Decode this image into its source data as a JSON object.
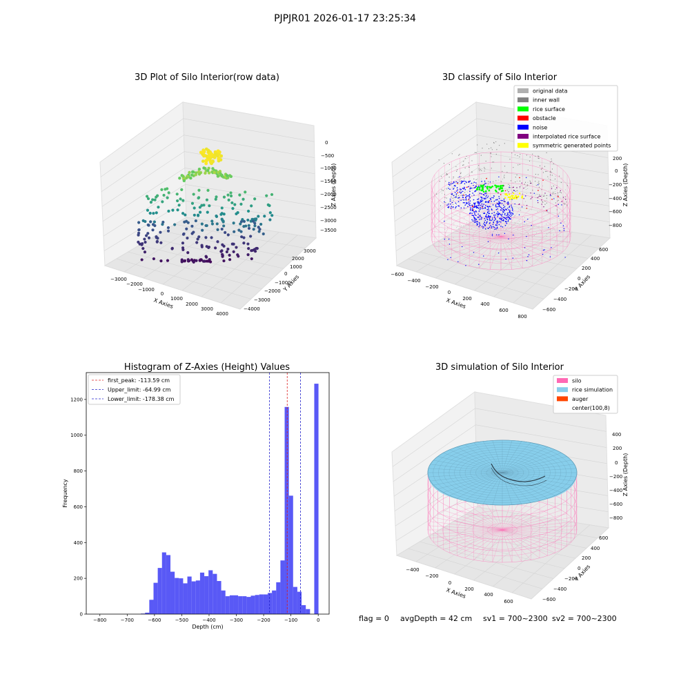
{
  "figure_title": "PJPJR01 2026-01-17 23:25:34",
  "status_line": {
    "flag": "flag = 0",
    "avg_depth": "avgDepth = 42 cm",
    "sv1": "sv1 = 700~2300",
    "sv2": "sv2 = 700~2300"
  },
  "colors": {
    "hist_bar": "#5050f5",
    "first_peak": "#dd2222",
    "limits": "#2222cc",
    "silo": "#ff69b4",
    "rice_simulation": "#87ceeb",
    "auger": "#ff4500",
    "original_data": "#b0b0b0",
    "inner_wall": "#808080",
    "rice_surface": "#00ff00",
    "obstacle": "#ff0000",
    "noise": "#0000ff",
    "interpolated_rice_surface": "#800080",
    "symmetric_generated_points": "#ffff00"
  },
  "chart_data": [
    {
      "type": "scatter",
      "title": "3D Plot of Silo Interior(row data)",
      "xlabel": "X Axies",
      "ylabel": "Y Axies",
      "zlabel": "Z Axies (Depth)",
      "x_ticks": [
        "−3000",
        "−2000",
        "−1000",
        "0",
        "1000",
        "2000",
        "3000",
        "4000"
      ],
      "y_ticks": [
        "−4000",
        "−3000",
        "−2000",
        "−1000",
        "0",
        "1000",
        "2000",
        "3000"
      ],
      "z_ticks": [
        "0",
        "−500",
        "−1000",
        "−1500",
        "−2000",
        "−2500",
        "−3000",
        "−3500"
      ]
    },
    {
      "type": "scatter",
      "title": "3D classify of Silo Interior",
      "xlabel": "X Axies",
      "ylabel": "Y Axies",
      "zlabel": "Z Axies (Depth)",
      "x_ticks": [
        "−600",
        "−400",
        "−200",
        "0",
        "200",
        "400",
        "600",
        "800"
      ],
      "y_ticks": [
        "−600",
        "−400",
        "−200",
        "0",
        "200",
        "400",
        "600"
      ],
      "z_ticks": [
        "200",
        "0",
        "−200",
        "−400",
        "−600",
        "−800"
      ],
      "legend": [
        {
          "label": "original data",
          "color": "#b0b0b0"
        },
        {
          "label": "inner wall",
          "color": "#808080"
        },
        {
          "label": "rice surface",
          "color": "#00ff00"
        },
        {
          "label": "obstacle",
          "color": "#ff0000"
        },
        {
          "label": "noise",
          "color": "#0000ff"
        },
        {
          "label": "interpolated rice surface",
          "color": "#800080"
        },
        {
          "label": "symmetric generated points",
          "color": "#ffff00"
        }
      ],
      "legend_position": "top-right"
    },
    {
      "type": "bar",
      "title": "Histogram of Z-Axies (Height) Values",
      "xlabel": "Depth (cm)",
      "ylabel": "Frequency",
      "xlim": [
        -850,
        40
      ],
      "ylim": [
        0,
        1350
      ],
      "x_ticks": [
        -800,
        -700,
        -600,
        -500,
        -400,
        -300,
        -200,
        -100,
        0
      ],
      "y_ticks": [
        0,
        200,
        400,
        600,
        800,
        1000,
        1200
      ],
      "bin_width": 15.5,
      "bins": [
        {
          "x0": -650,
          "count": 3
        },
        {
          "x0": -634.5,
          "count": 8
        },
        {
          "x0": -619,
          "count": 80
        },
        {
          "x0": -603.5,
          "count": 175
        },
        {
          "x0": -588,
          "count": 258
        },
        {
          "x0": -572.5,
          "count": 345
        },
        {
          "x0": -557,
          "count": 330
        },
        {
          "x0": -541.5,
          "count": 237
        },
        {
          "x0": -526,
          "count": 202
        },
        {
          "x0": -510.5,
          "count": 200
        },
        {
          "x0": -495,
          "count": 172
        },
        {
          "x0": -479.5,
          "count": 210
        },
        {
          "x0": -464,
          "count": 183
        },
        {
          "x0": -448.5,
          "count": 188
        },
        {
          "x0": -433,
          "count": 232
        },
        {
          "x0": -417.5,
          "count": 212
        },
        {
          "x0": -402,
          "count": 245
        },
        {
          "x0": -386.5,
          "count": 225
        },
        {
          "x0": -371,
          "count": 185
        },
        {
          "x0": -355.5,
          "count": 132
        },
        {
          "x0": -340,
          "count": 100
        },
        {
          "x0": -324.5,
          "count": 105
        },
        {
          "x0": -309,
          "count": 105
        },
        {
          "x0": -293.5,
          "count": 100
        },
        {
          "x0": -278,
          "count": 100
        },
        {
          "x0": -262.5,
          "count": 96
        },
        {
          "x0": -247,
          "count": 103
        },
        {
          "x0": -231.5,
          "count": 107
        },
        {
          "x0": -216,
          "count": 110
        },
        {
          "x0": -200.5,
          "count": 110
        },
        {
          "x0": -185,
          "count": 118
        },
        {
          "x0": -169.5,
          "count": 132
        },
        {
          "x0": -154,
          "count": 178
        },
        {
          "x0": -138.5,
          "count": 300
        },
        {
          "x0": -123,
          "count": 1158
        },
        {
          "x0": -107.5,
          "count": 662
        },
        {
          "x0": -92,
          "count": 152
        },
        {
          "x0": -76.5,
          "count": 125
        },
        {
          "x0": -61,
          "count": 50
        },
        {
          "x0": -45.5,
          "count": 28
        },
        {
          "x0": -30,
          "count": 0
        },
        {
          "x0": -14.5,
          "count": 1288
        }
      ],
      "lines": [
        {
          "label": "first_peak: -113.59 cm",
          "value": -113.59,
          "color": "#dd2222"
        },
        {
          "label": "Upper_limit: -64.99 cm",
          "value": -64.99,
          "color": "#2222cc"
        },
        {
          "label": "Lower_limit: -178.38 cm",
          "value": -178.38,
          "color": "#2222cc"
        }
      ],
      "legend_position": "top-left"
    },
    {
      "type": "surface",
      "title": "3D simulation of Silo Interior",
      "xlabel": "X Axies",
      "ylabel": "Y Axies",
      "zlabel": "Z Axies (Depth)",
      "x_ticks": [
        "−400",
        "−200",
        "0",
        "200",
        "400",
        "600"
      ],
      "y_ticks": [
        "−600",
        "−400",
        "−200",
        "0",
        "200",
        "400",
        "600"
      ],
      "z_ticks": [
        "400",
        "200",
        "0",
        "−200",
        "−400",
        "−600",
        "−800"
      ],
      "legend": [
        {
          "label": "silo",
          "color": "#ff69b4"
        },
        {
          "label": "rice simulation",
          "color": "#87ceeb"
        },
        {
          "label": "auger",
          "color": "#ff4500"
        },
        {
          "label": "center(100,8)",
          "color": "#ffffff"
        }
      ],
      "legend_position": "top-right"
    }
  ]
}
